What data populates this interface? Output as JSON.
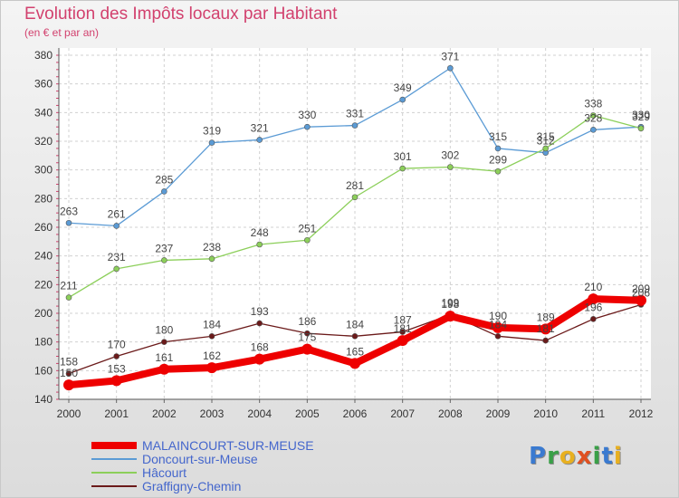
{
  "chart_data": {
    "type": "line",
    "title": "Evolution des Impôts locaux par Habitant",
    "subtitle": "(en € et par an)",
    "x": [
      "2000",
      "2001",
      "2002",
      "2003",
      "2004",
      "2005",
      "2006",
      "2007",
      "2008",
      "2009",
      "2010",
      "2011",
      "2012"
    ],
    "ylim": [
      140,
      380
    ],
    "yticks": [
      140,
      160,
      180,
      200,
      220,
      240,
      260,
      280,
      300,
      320,
      340,
      360,
      380
    ],
    "grid": true,
    "legend_position": "bottom-left",
    "series": [
      {
        "name": "MALAINCOURT-SUR-MEUSE",
        "color": "#ee0000",
        "values": [
          150,
          153,
          161,
          162,
          168,
          175,
          165,
          181,
          198,
          190,
          189,
          210,
          209
        ]
      },
      {
        "name": "Doncourt-sur-Meuse",
        "color": "#5b9bd5",
        "values": [
          263,
          261,
          285,
          319,
          321,
          330,
          331,
          349,
          371,
          315,
          312,
          328,
          330
        ]
      },
      {
        "name": "Hâcourt",
        "color": "#8ccf5a",
        "values": [
          211,
          231,
          237,
          238,
          248,
          251,
          281,
          301,
          302,
          299,
          315,
          338,
          329
        ]
      },
      {
        "name": "Graffigny-Chemin",
        "color": "#6b1a1a",
        "values": [
          158,
          170,
          180,
          184,
          193,
          186,
          184,
          187,
          199,
          184,
          181,
          196,
          206
        ]
      }
    ]
  },
  "logo": {
    "letters": [
      "P",
      "r",
      "o",
      "x",
      "i",
      "t",
      "i"
    ]
  }
}
